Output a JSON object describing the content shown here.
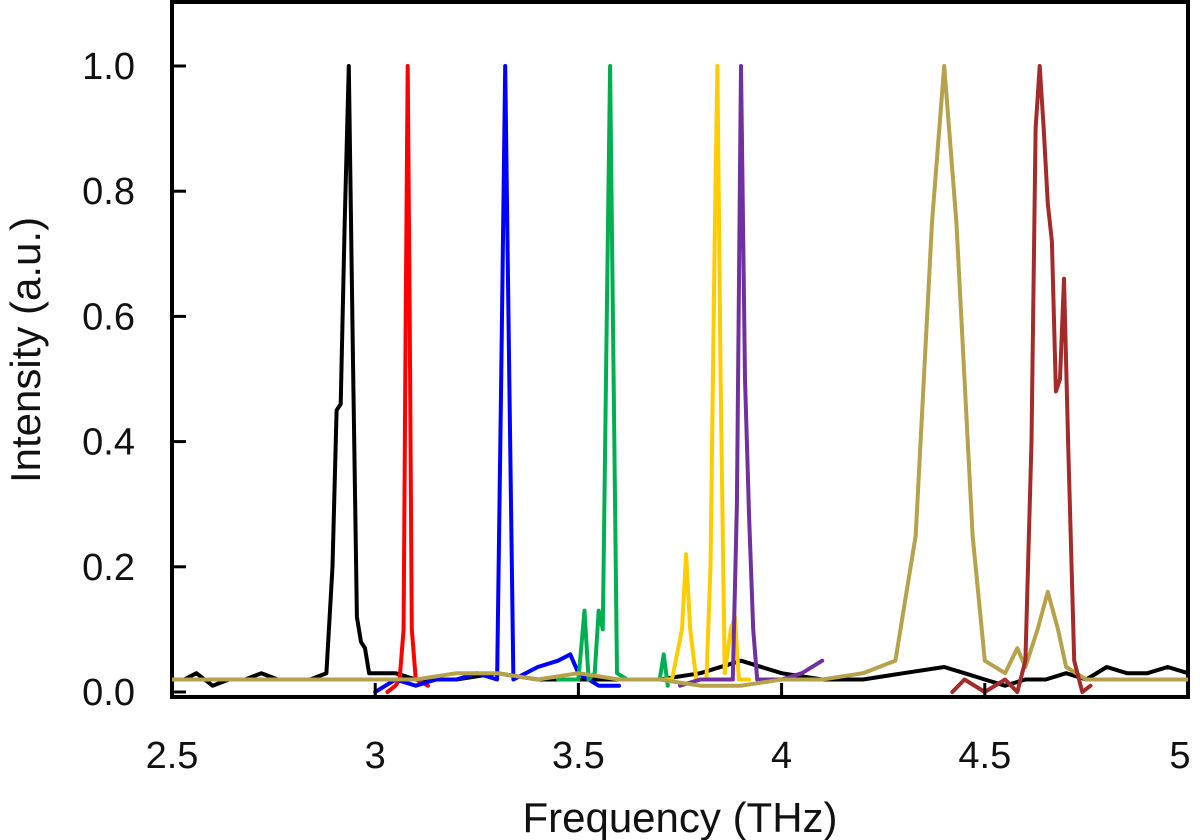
{
  "chart_data": {
    "type": "line",
    "title": "",
    "xlabel": "Frequency (THz)",
    "ylabel": "Intensity (a.u.)",
    "xlim": [
      2.5,
      5.0
    ],
    "ylim": [
      0.0,
      1.1
    ],
    "x_ticks": [
      2.5,
      3.0,
      3.5,
      4.0,
      4.5,
      5.0
    ],
    "x_tick_labels": [
      "2.5",
      "3",
      "3.5",
      "4",
      "4.5",
      "5"
    ],
    "y_ticks": [
      0.0,
      0.2,
      0.4,
      0.6,
      0.8,
      1.0
    ],
    "y_tick_labels": [
      "0.0",
      "0.2",
      "0.4",
      "0.6",
      "0.8",
      "1.0"
    ],
    "grid": false,
    "legend": "none",
    "series": [
      {
        "color": "#000000",
        "points": [
          [
            2.5,
            0.02
          ],
          [
            2.53,
            0.02
          ],
          [
            2.56,
            0.03
          ],
          [
            2.6,
            0.01
          ],
          [
            2.64,
            0.02
          ],
          [
            2.68,
            0.02
          ],
          [
            2.72,
            0.03
          ],
          [
            2.76,
            0.02
          ],
          [
            2.8,
            0.02
          ],
          [
            2.84,
            0.02
          ],
          [
            2.88,
            0.03
          ],
          [
            2.895,
            0.2
          ],
          [
            2.905,
            0.45
          ],
          [
            2.915,
            0.46
          ],
          [
            2.925,
            0.75
          ],
          [
            2.935,
            1.0
          ],
          [
            2.945,
            0.55
          ],
          [
            2.955,
            0.12
          ],
          [
            2.965,
            0.08
          ],
          [
            2.975,
            0.07
          ],
          [
            2.985,
            0.03
          ],
          [
            3.0,
            0.03
          ],
          [
            3.05,
            0.03
          ],
          [
            3.1,
            0.02
          ],
          [
            3.2,
            0.02
          ],
          [
            3.3,
            0.03
          ],
          [
            3.4,
            0.02
          ],
          [
            3.5,
            0.02
          ],
          [
            3.6,
            0.02
          ],
          [
            3.7,
            0.02
          ],
          [
            3.8,
            0.03
          ],
          [
            3.9,
            0.05
          ],
          [
            4.0,
            0.03
          ],
          [
            4.1,
            0.02
          ],
          [
            4.2,
            0.02
          ],
          [
            4.3,
            0.03
          ],
          [
            4.4,
            0.04
          ],
          [
            4.45,
            0.03
          ],
          [
            4.5,
            0.02
          ],
          [
            4.55,
            0.01
          ],
          [
            4.6,
            0.02
          ],
          [
            4.65,
            0.02
          ],
          [
            4.7,
            0.03
          ],
          [
            4.75,
            0.02
          ],
          [
            4.8,
            0.04
          ],
          [
            4.85,
            0.03
          ],
          [
            4.9,
            0.03
          ],
          [
            4.95,
            0.04
          ],
          [
            5.0,
            0.03
          ]
        ]
      },
      {
        "color": "#ff0000",
        "points": [
          [
            3.03,
            0.0
          ],
          [
            3.05,
            0.01
          ],
          [
            3.06,
            0.02
          ],
          [
            3.07,
            0.1
          ],
          [
            3.075,
            0.6
          ],
          [
            3.08,
            1.0
          ],
          [
            3.085,
            0.6
          ],
          [
            3.09,
            0.1
          ],
          [
            3.1,
            0.02
          ],
          [
            3.13,
            0.01
          ]
        ]
      },
      {
        "color": "#0000ff",
        "points": [
          [
            3.0,
            0.0
          ],
          [
            3.05,
            0.02
          ],
          [
            3.1,
            0.01
          ],
          [
            3.15,
            0.02
          ],
          [
            3.2,
            0.02
          ],
          [
            3.25,
            0.03
          ],
          [
            3.3,
            0.02
          ],
          [
            3.31,
            0.5
          ],
          [
            3.32,
            1.0
          ],
          [
            3.33,
            0.5
          ],
          [
            3.34,
            0.02
          ],
          [
            3.4,
            0.04
          ],
          [
            3.45,
            0.05
          ],
          [
            3.48,
            0.06
          ],
          [
            3.5,
            0.03
          ],
          [
            3.55,
            0.01
          ],
          [
            3.6,
            0.01
          ]
        ]
      },
      {
        "color": "#00b050",
        "points": [
          [
            3.45,
            0.02
          ],
          [
            3.5,
            0.02
          ],
          [
            3.515,
            0.13
          ],
          [
            3.525,
            0.02
          ],
          [
            3.54,
            0.03
          ],
          [
            3.55,
            0.13
          ],
          [
            3.56,
            0.1
          ],
          [
            3.57,
            0.6
          ],
          [
            3.578,
            1.0
          ],
          [
            3.585,
            0.6
          ],
          [
            3.595,
            0.03
          ],
          [
            3.62,
            0.02
          ],
          [
            3.65,
            0.02
          ],
          [
            3.7,
            0.02
          ],
          [
            3.71,
            0.06
          ],
          [
            3.72,
            0.01
          ]
        ]
      },
      {
        "color": "#ffcc00",
        "points": [
          [
            3.7,
            0.02
          ],
          [
            3.73,
            0.02
          ],
          [
            3.755,
            0.1
          ],
          [
            3.765,
            0.22
          ],
          [
            3.775,
            0.1
          ],
          [
            3.79,
            0.02
          ],
          [
            3.815,
            0.02
          ],
          [
            3.825,
            0.2
          ],
          [
            3.835,
            0.7
          ],
          [
            3.842,
            1.0
          ],
          [
            3.85,
            0.5
          ],
          [
            3.86,
            0.03
          ],
          [
            3.875,
            0.1
          ],
          [
            3.885,
            0.12
          ],
          [
            3.895,
            0.02
          ],
          [
            3.92,
            0.02
          ]
        ]
      },
      {
        "color": "#7030a0",
        "points": [
          [
            3.75,
            0.01
          ],
          [
            3.8,
            0.02
          ],
          [
            3.86,
            0.02
          ],
          [
            3.88,
            0.02
          ],
          [
            3.89,
            0.3
          ],
          [
            3.9,
            1.0
          ],
          [
            3.91,
            0.5
          ],
          [
            3.92,
            0.28
          ],
          [
            3.93,
            0.1
          ],
          [
            3.94,
            0.02
          ],
          [
            4.0,
            0.02
          ],
          [
            4.05,
            0.03
          ],
          [
            4.1,
            0.05
          ]
        ]
      },
      {
        "color": "#b5a24a",
        "points": [
          [
            2.5,
            0.02
          ],
          [
            2.55,
            0.02
          ],
          [
            2.6,
            0.02
          ],
          [
            2.7,
            0.02
          ],
          [
            2.8,
            0.02
          ],
          [
            2.9,
            0.02
          ],
          [
            3.0,
            0.02
          ],
          [
            3.1,
            0.02
          ],
          [
            3.2,
            0.03
          ],
          [
            3.3,
            0.03
          ],
          [
            3.4,
            0.02
          ],
          [
            3.5,
            0.03
          ],
          [
            3.6,
            0.02
          ],
          [
            3.7,
            0.02
          ],
          [
            3.8,
            0.01
          ],
          [
            3.9,
            0.01
          ],
          [
            4.0,
            0.02
          ],
          [
            4.1,
            0.02
          ],
          [
            4.2,
            0.03
          ],
          [
            4.28,
            0.05
          ],
          [
            4.33,
            0.25
          ],
          [
            4.37,
            0.75
          ],
          [
            4.4,
            1.0
          ],
          [
            4.43,
            0.75
          ],
          [
            4.47,
            0.25
          ],
          [
            4.5,
            0.05
          ],
          [
            4.55,
            0.03
          ],
          [
            4.58,
            0.07
          ],
          [
            4.6,
            0.04
          ],
          [
            4.63,
            0.1
          ],
          [
            4.655,
            0.16
          ],
          [
            4.68,
            0.1
          ],
          [
            4.7,
            0.04
          ],
          [
            4.75,
            0.02
          ],
          [
            4.8,
            0.02
          ],
          [
            4.85,
            0.02
          ],
          [
            4.9,
            0.02
          ],
          [
            4.95,
            0.02
          ],
          [
            5.0,
            0.02
          ]
        ]
      },
      {
        "color": "#a52a2a",
        "points": [
          [
            4.42,
            0.0
          ],
          [
            4.45,
            0.02
          ],
          [
            4.5,
            0.0
          ],
          [
            4.55,
            0.02
          ],
          [
            4.58,
            0.0
          ],
          [
            4.6,
            0.05
          ],
          [
            4.615,
            0.4
          ],
          [
            4.625,
            0.9
          ],
          [
            4.635,
            1.0
          ],
          [
            4.645,
            0.9
          ],
          [
            4.655,
            0.78
          ],
          [
            4.665,
            0.72
          ],
          [
            4.675,
            0.48
          ],
          [
            4.685,
            0.5
          ],
          [
            4.695,
            0.66
          ],
          [
            4.705,
            0.4
          ],
          [
            4.72,
            0.05
          ],
          [
            4.74,
            0.0
          ],
          [
            4.76,
            0.01
          ]
        ]
      }
    ]
  }
}
